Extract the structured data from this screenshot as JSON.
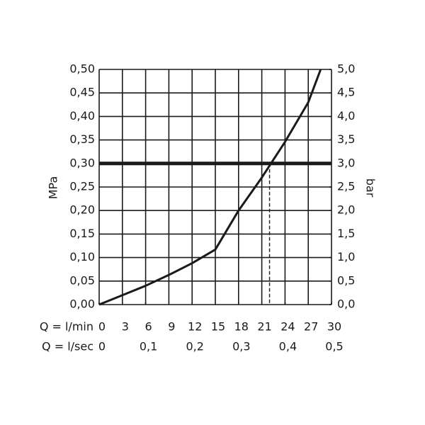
{
  "chart_data": {
    "type": "line",
    "xlabel": "Q = l/min",
    "x2label": "Q = l/sec",
    "ylabel": "MPa",
    "y2label": "bar",
    "xlim": [
      0,
      30
    ],
    "xticks": [
      0,
      3,
      6,
      9,
      12,
      15,
      18,
      21,
      24,
      27,
      30
    ],
    "x2lim": [
      0,
      0.5
    ],
    "x2ticks": [
      0,
      {
        "value": 0.1,
        "label": "0,1"
      },
      {
        "value": 0.2,
        "label": "0,2"
      },
      {
        "value": 0.3,
        "label": "0,3"
      },
      {
        "value": 0.4,
        "label": "0,4"
      },
      {
        "value": 0.5,
        "label": "0,5"
      }
    ],
    "ylim": [
      0,
      0.5
    ],
    "yticks": [
      {
        "value": 0,
        "label": "0,00"
      },
      {
        "value": 0.05,
        "label": "0,05"
      },
      {
        "value": 0.1,
        "label": "0,10"
      },
      {
        "value": 0.15,
        "label": "0,15"
      },
      {
        "value": 0.2,
        "label": "0,20"
      },
      {
        "value": 0.25,
        "label": "0,25"
      },
      {
        "value": 0.3,
        "label": "0,30"
      },
      {
        "value": 0.35,
        "label": "0,35"
      },
      {
        "value": 0.4,
        "label": "0,40"
      },
      {
        "value": 0.45,
        "label": "0,45"
      },
      {
        "value": 0.5,
        "label": "0,50"
      }
    ],
    "y2lim": [
      0,
      5
    ],
    "y2ticks": [
      {
        "value": 0,
        "label": "0,0"
      },
      {
        "value": 0.5,
        "label": "0,5"
      },
      {
        "value": 1,
        "label": "1,0"
      },
      {
        "value": 1.5,
        "label": "1,5"
      },
      {
        "value": 2,
        "label": "2,0"
      },
      {
        "value": 2.5,
        "label": "2,5"
      },
      {
        "value": 3,
        "label": "3,0"
      },
      {
        "value": 3.5,
        "label": "3,5"
      },
      {
        "value": 4,
        "label": "4,0"
      },
      {
        "value": 4.5,
        "label": "4,5"
      },
      {
        "value": 5,
        "label": "5,0"
      }
    ],
    "grid": true,
    "reference_y": 0.3,
    "reference_x": 22,
    "series": [
      {
        "color": "#1a1a1a",
        "x": [
          0,
          3,
          6,
          9,
          12,
          15,
          18,
          21,
          24,
          27,
          28.6
        ],
        "values": [
          0,
          0.02,
          0.04,
          0.063,
          0.088,
          0.117,
          0.2,
          0.27,
          0.346,
          0.43,
          0.5
        ]
      }
    ]
  }
}
